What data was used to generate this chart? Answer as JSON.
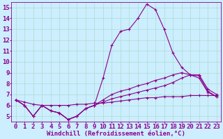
{
  "x": [
    0,
    1,
    2,
    3,
    4,
    5,
    6,
    7,
    8,
    9,
    10,
    11,
    12,
    13,
    14,
    15,
    16,
    17,
    18,
    19,
    20,
    21,
    22,
    23
  ],
  "line_main": [
    6.5,
    6.0,
    5.0,
    6.0,
    5.5,
    5.3,
    4.7,
    5.0,
    5.7,
    6.0,
    8.5,
    11.5,
    12.8,
    13.0,
    14.0,
    15.3,
    14.8,
    13.0,
    10.8,
    9.5,
    8.8,
    8.7,
    7.3,
    6.8
  ],
  "line2": [
    6.5,
    6.0,
    5.0,
    6.0,
    5.5,
    5.3,
    4.7,
    5.0,
    5.7,
    6.0,
    6.5,
    7.0,
    7.3,
    7.5,
    7.8,
    8.0,
    8.3,
    8.5,
    8.8,
    9.0,
    8.8,
    8.8,
    7.5,
    7.0
  ],
  "line3": [
    6.5,
    6.0,
    5.0,
    6.0,
    5.5,
    5.3,
    4.7,
    5.0,
    5.7,
    6.0,
    6.3,
    6.6,
    6.8,
    7.0,
    7.2,
    7.4,
    7.6,
    7.8,
    8.1,
    8.5,
    8.8,
    8.5,
    7.2,
    6.8
  ],
  "line4": [
    6.5,
    6.3,
    6.1,
    6.0,
    6.0,
    6.0,
    6.0,
    6.1,
    6.1,
    6.2,
    6.2,
    6.3,
    6.4,
    6.5,
    6.6,
    6.7,
    6.7,
    6.8,
    6.8,
    6.8,
    6.9,
    6.9,
    6.9,
    6.9
  ],
  "line_color": "#8b008b",
  "background_color": "#cceeff",
  "grid_color": "#aaddcc",
  "xlabel": "Windchill (Refroidissement éolien,°C)",
  "ylim": [
    4.5,
    15.5
  ],
  "xlim": [
    -0.5,
    23.5
  ],
  "yticks": [
    5,
    6,
    7,
    8,
    9,
    10,
    11,
    12,
    13,
    14,
    15
  ],
  "xticks": [
    0,
    1,
    2,
    3,
    4,
    5,
    6,
    7,
    8,
    9,
    10,
    11,
    12,
    13,
    14,
    15,
    16,
    17,
    18,
    19,
    20,
    21,
    22,
    23
  ],
  "xlabel_fontsize": 6.5,
  "tick_fontsize": 6.5,
  "markersize": 3.0,
  "linewidth": 0.8
}
